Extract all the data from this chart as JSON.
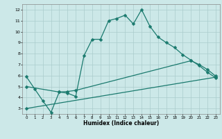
{
  "xlabel": "Humidex (Indice chaleur)",
  "background_color": "#cce8e8",
  "grid_color": "#aacccc",
  "line_color": "#1a7a6e",
  "xlim": [
    -0.5,
    23.5
  ],
  "ylim": [
    2.5,
    12.5
  ],
  "xticks": [
    0,
    1,
    2,
    3,
    4,
    5,
    6,
    7,
    8,
    9,
    10,
    11,
    12,
    13,
    14,
    15,
    16,
    17,
    18,
    19,
    20,
    21,
    22,
    23
  ],
  "yticks": [
    3,
    4,
    5,
    6,
    7,
    8,
    9,
    10,
    11,
    12
  ],
  "curve1_x": [
    0,
    1,
    2,
    3,
    4,
    5,
    6,
    7,
    8,
    9,
    10,
    11,
    12,
    13,
    14,
    15,
    16,
    17,
    18,
    19,
    20,
    21,
    22,
    23
  ],
  "curve1_y": [
    5.9,
    4.8,
    3.7,
    2.65,
    4.5,
    4.4,
    4.1,
    7.8,
    9.3,
    9.3,
    11.0,
    11.2,
    11.5,
    10.7,
    12.0,
    10.5,
    9.5,
    9.0,
    8.55,
    7.9,
    7.4,
    6.9,
    6.3,
    5.8
  ],
  "curve2_x": [
    0,
    4,
    5,
    6,
    20,
    21,
    22,
    23
  ],
  "curve2_y": [
    5.0,
    4.5,
    4.55,
    4.65,
    7.35,
    7.0,
    6.55,
    5.95
  ],
  "curve3_x": [
    0,
    23
  ],
  "curve3_y": [
    3.0,
    5.85
  ],
  "markersize": 2.5,
  "linewidth": 0.9
}
